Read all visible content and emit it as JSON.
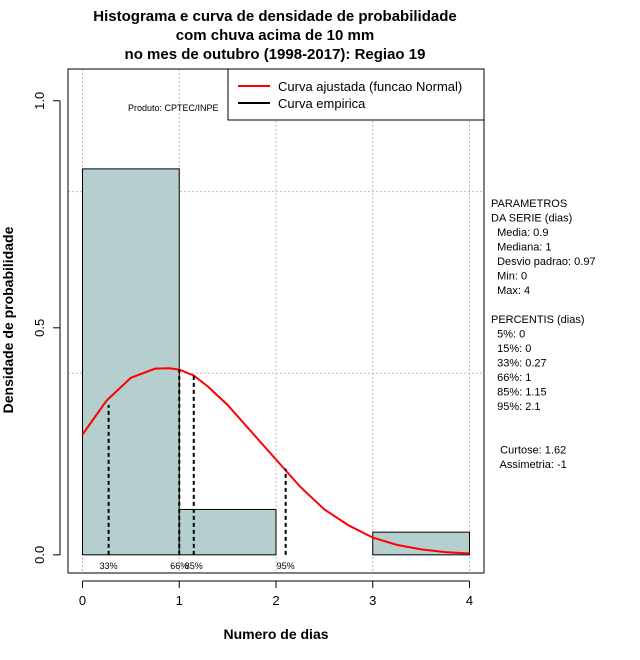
{
  "chart_data": {
    "type": "bar",
    "title_lines": [
      "Histograma e curva de densidade de probabilidade",
      "com chuva acima de 10 mm",
      "no mes de outubro (1998-2017): Regiao 19"
    ],
    "xlabel": "Numero de dias",
    "ylabel": "Densidade de probabilidade",
    "xlim": [
      -0.15,
      4.15
    ],
    "ylim": [
      -0.04,
      1.07
    ],
    "x_ticks": [
      "0",
      "1",
      "2",
      "3",
      "4"
    ],
    "y_ticks": [
      "0.0",
      "0.5",
      "1.0"
    ],
    "grid_x": [
      0,
      1,
      2,
      3,
      4
    ],
    "grid_y": [
      0.4,
      0.8
    ],
    "histogram": {
      "bins": [
        {
          "start": 0,
          "end": 1,
          "density": 0.85
        },
        {
          "start": 1,
          "end": 2,
          "density": 0.1
        },
        {
          "start": 2,
          "end": 3,
          "density": 0.0
        },
        {
          "start": 3,
          "end": 4,
          "density": 0.05
        }
      ],
      "color": "#b5cfcf"
    },
    "series": [
      {
        "name": "Curva ajustada (funcao Normal)",
        "color": "#ff0000",
        "x": [
          0.0,
          0.25,
          0.5,
          0.75,
          0.9,
          1.0,
          1.15,
          1.3,
          1.5,
          1.75,
          2.0,
          2.25,
          2.5,
          2.75,
          3.0,
          3.25,
          3.5,
          3.75,
          4.0
        ],
        "y": [
          0.265,
          0.34,
          0.39,
          0.41,
          0.411,
          0.408,
          0.395,
          0.37,
          0.33,
          0.27,
          0.21,
          0.15,
          0.1,
          0.065,
          0.038,
          0.022,
          0.012,
          0.006,
          0.003
        ]
      }
    ],
    "percentile_lines": [
      {
        "label": "33%",
        "x": 0.27,
        "y": 0.33
      },
      {
        "label": "66%",
        "x": 1.0,
        "y": 0.408
      },
      {
        "label": "85%",
        "x": 1.15,
        "y": 0.395
      },
      {
        "label": "95%",
        "x": 2.1,
        "y": 0.19
      }
    ],
    "legend": {
      "position": "top-right",
      "entries": [
        {
          "label": "Curva ajustada (funcao Normal)",
          "color": "#ff0000"
        },
        {
          "label": "Curva empirica",
          "color": "#000000"
        }
      ]
    },
    "source_note": "Produto: CPTEC/INPE",
    "side_text": [
      "PARAMETROS",
      "DA SERIE (dias)",
      "  Media: 0.9",
      "  Mediana: 1",
      "  Desvio padrao: 0.97",
      "  Min: 0",
      "  Max: 4",
      "",
      "PERCENTIS (dias)",
      "  5%: 0",
      "  15%: 0",
      "  33%: 0.27",
      "  66%: 1",
      "  85%: 1.15",
      "  95%: 2.1",
      "",
      "",
      "   Curtose: 1.62",
      "   Assimetria: -1"
    ]
  }
}
